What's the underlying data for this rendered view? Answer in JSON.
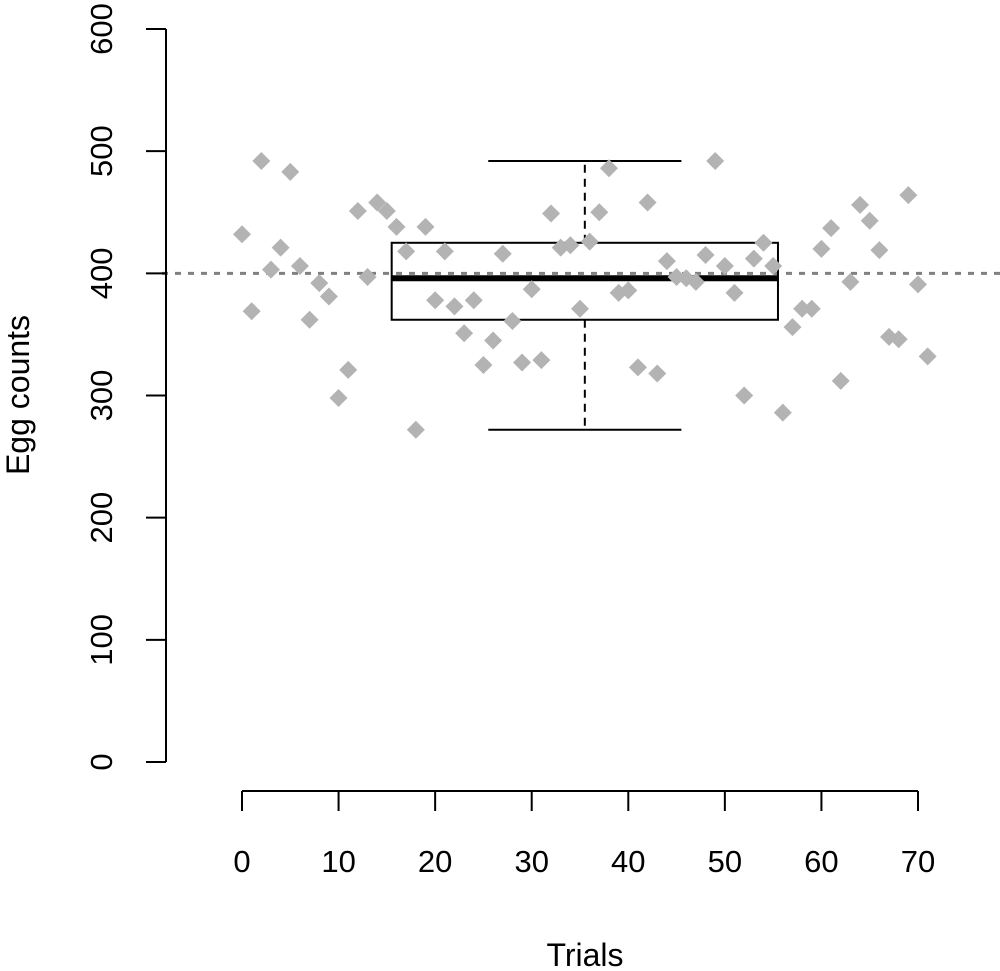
{
  "chart_data": {
    "type": "scatter",
    "title": "",
    "xlabel": "Trials",
    "ylabel": "Egg counts",
    "xlim": [
      0,
      70
    ],
    "ylim": [
      0,
      600
    ],
    "x_ticks": [
      0,
      10,
      20,
      30,
      40,
      50,
      60,
      70
    ],
    "y_ticks": [
      0,
      100,
      200,
      300,
      400,
      500,
      600
    ],
    "grid": false,
    "point_color": "#b3b3b3",
    "reference_line": {
      "y": 400,
      "style": "dotted",
      "color": "#808080"
    },
    "boxplot": {
      "position_x": 35.5,
      "x_range": [
        15.5,
        55.5
      ],
      "whisker_low": 272,
      "q1": 362,
      "median": 396,
      "q3": 425,
      "whisker_high": 492,
      "cap_range": [
        25.5,
        45.5
      ]
    },
    "series": [
      {
        "x": [
          0,
          1,
          2,
          3,
          4,
          5,
          6,
          7,
          8,
          9,
          10,
          11,
          12,
          13,
          14,
          15,
          16,
          17,
          18,
          19,
          20,
          21,
          22,
          23,
          24,
          25,
          26,
          27,
          28,
          29,
          30,
          31,
          32,
          33,
          34,
          35,
          36,
          37,
          38,
          39,
          40,
          41,
          42,
          43,
          44,
          45,
          46,
          47,
          48,
          49,
          50,
          51,
          52,
          53,
          54,
          55,
          56,
          57,
          58,
          59,
          60,
          61,
          62,
          63,
          64,
          65,
          66,
          67,
          68,
          69,
          70,
          71
        ],
        "y": [
          432,
          369,
          492,
          403,
          421,
          483,
          406,
          362,
          392,
          381,
          298,
          321,
          451,
          397,
          458,
          451,
          438,
          418,
          272,
          438,
          378,
          418,
          373,
          351,
          378,
          325,
          345,
          416,
          361,
          327,
          387,
          329,
          449,
          421,
          423,
          371,
          426,
          450,
          486,
          384,
          386,
          323,
          458,
          318,
          410,
          397,
          396,
          393,
          415,
          492,
          406,
          384,
          300,
          412,
          425,
          406,
          286,
          356,
          371,
          371,
          420,
          437,
          312,
          393,
          456,
          443,
          419,
          348,
          346,
          464,
          391,
          332
        ]
      }
    ]
  }
}
